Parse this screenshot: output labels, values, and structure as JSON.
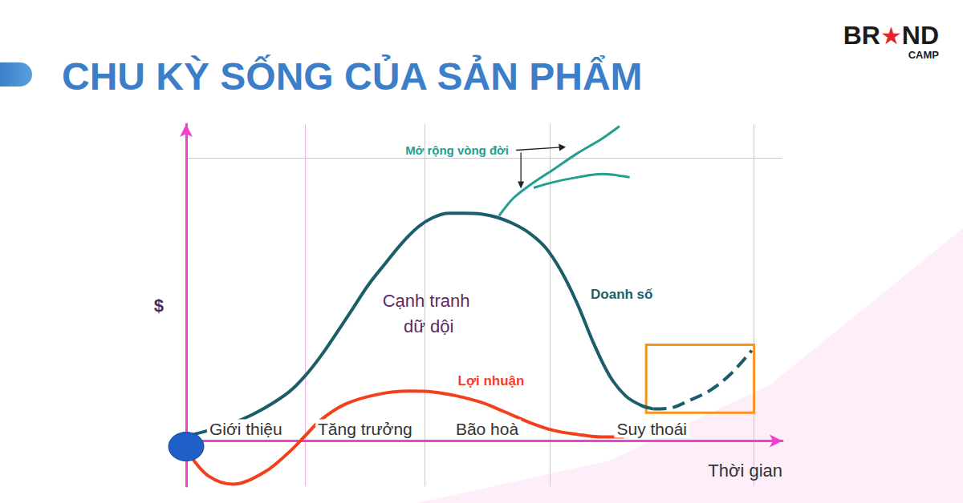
{
  "brand": {
    "text": [
      "BR",
      "★",
      "ND"
    ],
    "subtitle": "CAMP"
  },
  "chart_data": {
    "type": "line",
    "title": "CHU KỲ SỐNG CỦA SẢN PHẨM",
    "x_label": "Thời gian",
    "y_label": "$",
    "xlim": [
      0,
      105
    ],
    "xticks": [
      0,
      21,
      42,
      64,
      100
    ],
    "ylim": [
      -16,
      112
    ],
    "yticks": [
      0,
      100
    ],
    "grid": true,
    "tick_labels": false,
    "stages": [
      "Giới thiệu",
      "Tăng trưởng",
      "Bão hoà",
      "Suy thoái"
    ],
    "series": [
      {
        "name": "Doanh số",
        "color": "#1b5e6a",
        "x": [
          0,
          5.4,
          9.6,
          13.8,
          18.1,
          20.9,
          23.7,
          26.6,
          29.4,
          32.2,
          35.0,
          37.9,
          40.7,
          43.5,
          46.3,
          49.2,
          52.0,
          54.8,
          57.6,
          60.5,
          63.3,
          66.1,
          68.9,
          71.8,
          74.6,
          77.4,
          80.2,
          82.3
        ],
        "values": [
          1.7,
          4.5,
          7.4,
          11.6,
          17.3,
          22.9,
          30.0,
          38.5,
          47.0,
          55.5,
          62.6,
          69.7,
          75.4,
          79.0,
          80.5,
          80.5,
          80.2,
          79.0,
          76.8,
          73.4,
          68.3,
          59.8,
          48.4,
          34.3,
          22.9,
          15.9,
          12.5,
          11.3
        ],
        "label_at": [
          76.7,
          51.8
        ]
      },
      {
        "color": "#1b5e6a",
        "line_style": "dashed",
        "x": [
          82.3,
          85.2,
          88.7,
          92.2,
          95.8,
          99.6
        ],
        "values": [
          11.3,
          11.6,
          14.4,
          17.8,
          23.5,
          32.0
        ],
        "highlight": {
          "x": [
            81,
            100
          ],
          "y": [
            10,
            34
          ],
          "color": "#f7941d"
        }
      },
      {
        "name": "Mở rộng vòng đời",
        "color": "#22a08f",
        "x": [
          55.1,
          57.6,
          60.5,
          64.7,
          68.9,
          73.2,
          76.3,
          77.0,
          61.2,
          64.7,
          68.9,
          73.2,
          78.1
        ],
        "values": [
          79.6,
          85.8,
          90.4,
          96.0,
          101.7,
          106.8,
          111.3,
          null,
          89.5,
          91.5,
          93.2,
          94.4,
          93.2
        ],
        "label_at": [
          47.7,
          102.8
        ]
      },
      {
        "name": "Lợi nhuận",
        "color": "#f2401c",
        "x": [
          0.8,
          4.0,
          8.2,
          13.8,
          18.1,
          20.9,
          23.7,
          28.0,
          33.6,
          39.3,
          43.5,
          47.7,
          52.0,
          56.2,
          60.5,
          64.7,
          68.9,
          73.2,
          77.1
        ],
        "values": [
          -5.4,
          -12.5,
          -15.3,
          -11.0,
          -4.0,
          1.7,
          7.4,
          13.0,
          16.4,
          17.6,
          17.3,
          15.9,
          13.6,
          10.2,
          6.5,
          3.7,
          2.3,
          1.4,
          1.4
        ],
        "label_at": [
          53.7,
          21.2
        ]
      }
    ],
    "annotations": [
      {
        "text": "Cạnh tranh dữ dội",
        "x": 42.7,
        "y": 45.0,
        "color": "#5e2a63"
      }
    ],
    "origin_marker": {
      "x": 0,
      "y": -2,
      "color": "#1f5fc8"
    }
  }
}
